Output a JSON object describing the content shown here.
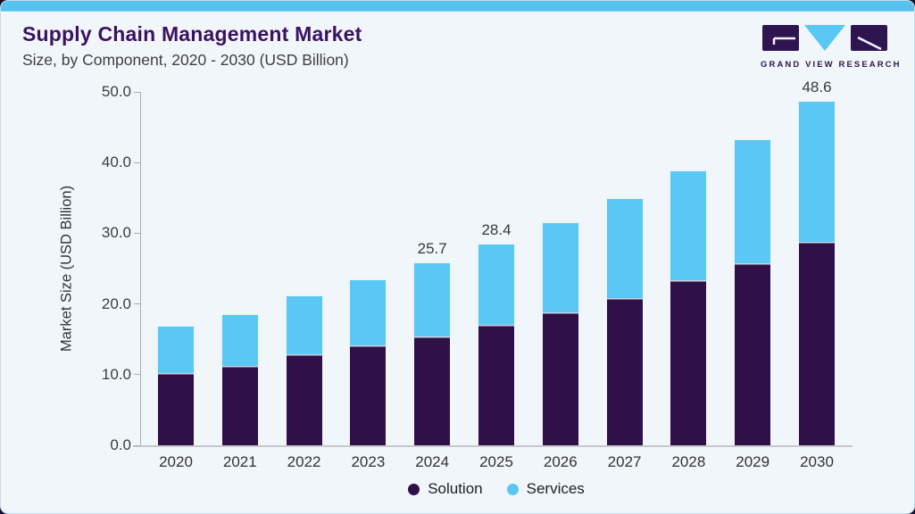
{
  "page": {
    "title": "Supply Chain Management Market",
    "subtitle": "Size, by Component, 2020 - 2030 (USD Billion)",
    "brand": "GRAND VIEW RESEARCH"
  },
  "colors": {
    "accent_bar": "#55c2f0",
    "card_background": "#f0f6fa",
    "title_text": "#3c1161",
    "solution": "#2f1148",
    "services": "#5ac8f4"
  },
  "chart_data": {
    "type": "bar",
    "stacked": true,
    "title": "Supply Chain Management Market Size, by Component, 2020 - 2030 (USD Billion)",
    "categories": [
      "2020",
      "2021",
      "2022",
      "2023",
      "2024",
      "2025",
      "2026",
      "2027",
      "2028",
      "2029",
      "2030"
    ],
    "series": [
      {
        "name": "Solution",
        "color": "#2f1148",
        "values": [
          10.2,
          11.2,
          12.9,
          14.1,
          15.4,
          17.0,
          18.8,
          20.8,
          23.3,
          25.8,
          28.8
        ]
      },
      {
        "name": "Services",
        "color": "#5ac8f4",
        "values": [
          6.6,
          7.2,
          8.2,
          9.2,
          10.3,
          11.4,
          12.6,
          14.0,
          15.4,
          17.4,
          19.8
        ]
      }
    ],
    "totals": [
      16.8,
      18.4,
      21.1,
      23.3,
      25.7,
      28.4,
      31.4,
      34.8,
      38.7,
      43.2,
      48.6
    ],
    "bar_labels": {
      "2024": "25.7",
      "2025": "28.4",
      "2030": "48.6"
    },
    "xlabel": "",
    "ylabel": "Market Size (USD Billion)",
    "ylim": [
      0,
      50
    ],
    "yticks": [
      "0.0",
      "10.0",
      "20.0",
      "30.0",
      "40.0",
      "50.0"
    ],
    "grid": false,
    "legend_position": "bottom"
  }
}
